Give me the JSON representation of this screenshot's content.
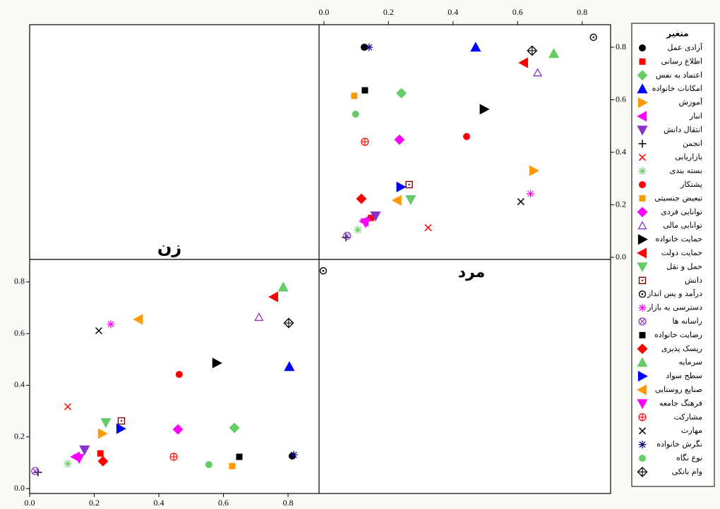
{
  "chart_data": [
    {
      "type": "scatter",
      "label": "مرد",
      "xaxis": "top",
      "yaxis": "right",
      "xlim": [
        -0.015,
        0.888
      ],
      "ylim": [
        -0.008,
        0.886
      ],
      "xticks": [
        {
          "value": 0,
          "label": "0.0"
        },
        0.2,
        0.4,
        0.6,
        0.8
      ],
      "yticks": [
        {
          "value": 0,
          "label": "0.0"
        },
        0.2,
        0.4,
        0.6,
        0.8
      ],
      "x": [
        0.125,
        0.146,
        0.24,
        0.47,
        0.65,
        0.125,
        0.16,
        0.068,
        0.323,
        0.105,
        0.442,
        0.094,
        0.234,
        0.662,
        0.496,
        0.619,
        0.269,
        0.264,
        0.835,
        0.64,
        0.072,
        0.127,
        0.116,
        0.712,
        0.238,
        0.227,
        0.129,
        0.127,
        0.61,
        0.14,
        0.098,
        0.645
      ],
      "y": [
        0.8,
        0.15,
        0.625,
        0.8,
        0.33,
        0.137,
        0.158,
        0.076,
        0.113,
        0.105,
        0.46,
        0.615,
        0.448,
        0.703,
        0.564,
        0.741,
        0.22,
        0.277,
        0.838,
        0.242,
        0.082,
        0.636,
        0.223,
        0.776,
        0.268,
        0.217,
        0.132,
        0.44,
        0.212,
        0.8,
        0.545,
        0.787
      ]
    },
    {
      "type": "scatter",
      "label": "زن",
      "xaxis": "bottom",
      "yaxis": "left",
      "xlim": [
        0,
        0.896
      ],
      "ylim": [
        -0.019,
        0.887
      ],
      "xticks": [
        {
          "value": 0,
          "label": "0.0"
        },
        0.2,
        0.4,
        0.6,
        0.8
      ],
      "yticks": [
        {
          "value": 0,
          "label": "0.0"
        },
        0.2,
        0.4,
        0.6,
        0.8
      ],
      "x": [
        0.813,
        0.219,
        0.634,
        0.804,
        0.225,
        0.142,
        0.17,
        0.026,
        0.118,
        0.118,
        0.463,
        0.627,
        0.459,
        0.71,
        0.579,
        0.756,
        0.236,
        0.284,
        0.909,
        0.251,
        0.017,
        0.649,
        0.227,
        0.785,
        0.282,
        0.337,
        0.153,
        0.446,
        0.214,
        0.818,
        0.555,
        0.802
      ],
      "y": [
        0.126,
        0.136,
        0.235,
        0.472,
        0.213,
        0.123,
        0.15,
        0.063,
        0.317,
        0.096,
        0.442,
        0.087,
        0.229,
        0.663,
        0.486,
        0.742,
        0.256,
        0.262,
        0.843,
        0.636,
        0.068,
        0.123,
        0.106,
        0.78,
        0.232,
        0.655,
        0.117,
        0.123,
        0.611,
        0.131,
        0.093,
        0.641
      ]
    }
  ],
  "legend": {
    "title": "متغیر",
    "entries": [
      {
        "name": "آزادی عمل",
        "color": "#000000",
        "marker": "circle"
      },
      {
        "name": "اطلاع رسانی",
        "color": "#ff0000",
        "marker": "square"
      },
      {
        "name": "اعتماد به نفس",
        "color": "#66cc66",
        "marker": "diamond"
      },
      {
        "name": "امکانات خانواده",
        "color": "#0000ff",
        "marker": "tri-up"
      },
      {
        "name": "آموزش",
        "color": "#ff9900",
        "marker": "tri-right"
      },
      {
        "name": "انبار",
        "color": "#ff00ff",
        "marker": "tri-left"
      },
      {
        "name": "انتقال دانش",
        "color": "#8833cc",
        "marker": "tri-down"
      },
      {
        "name": "انجمن",
        "color": "#000000",
        "marker": "plus"
      },
      {
        "name": "بازاریابی",
        "color": "#ff0000",
        "marker": "cross"
      },
      {
        "name": "بسته بندی",
        "color": "#66cc66",
        "marker": "asterisk"
      },
      {
        "name": "پشتکار",
        "color": "#ff0000",
        "marker": "circle"
      },
      {
        "name": "تبعیض جنسیتی",
        "color": "#ff9900",
        "marker": "square"
      },
      {
        "name": "توانایی فردی",
        "color": "#ff00ff",
        "marker": "diamond"
      },
      {
        "name": "توانایی مالی",
        "color": "#8833cc",
        "marker": "open-tri"
      },
      {
        "name": "حمایت خانواده",
        "color": "#000000",
        "marker": "tri-right"
      },
      {
        "name": "حمایت دولت",
        "color": "#ff0000",
        "marker": "tri-left"
      },
      {
        "name": "حمل و نقل",
        "color": "#66cc66",
        "marker": "tri-down"
      },
      {
        "name": "دانش",
        "color": "#800000",
        "marker": "boxdot"
      },
      {
        "name": "درآمد و پس انداز",
        "color": "#000000",
        "marker": "circle-dot"
      },
      {
        "name": "دسترسی به بازار",
        "color": "#ff00ff",
        "marker": "asterisk"
      },
      {
        "name": "راسانه ها",
        "color": "#8833cc",
        "marker": "circle-x"
      },
      {
        "name": "رضایت خانواده",
        "color": "#000000",
        "marker": "square"
      },
      {
        "name": "ریسک پذیری",
        "color": "#ff0000",
        "marker": "diamond"
      },
      {
        "name": "سرمایه",
        "color": "#66cc66",
        "marker": "tri-up"
      },
      {
        "name": "سطح سواد",
        "color": "#0000ff",
        "marker": "tri-right"
      },
      {
        "name": "صنایع روستایی",
        "color": "#ff9900",
        "marker": "tri-left"
      },
      {
        "name": "فرهنگ جامعه",
        "color": "#ff00ff",
        "marker": "tri-down"
      },
      {
        "name": "مشارکت",
        "color": "#ff0000",
        "marker": "circle-plus"
      },
      {
        "name": "مهارت",
        "color": "#000000",
        "marker": "cross"
      },
      {
        "name": "نگرش خانواده",
        "color": "#000080",
        "marker": "asterisk"
      },
      {
        "name": "نوع نگاه",
        "color": "#66cc66",
        "marker": "circle"
      },
      {
        "name": "وام بانکی",
        "color": "#000000",
        "marker": "diamond-plus"
      }
    ]
  }
}
